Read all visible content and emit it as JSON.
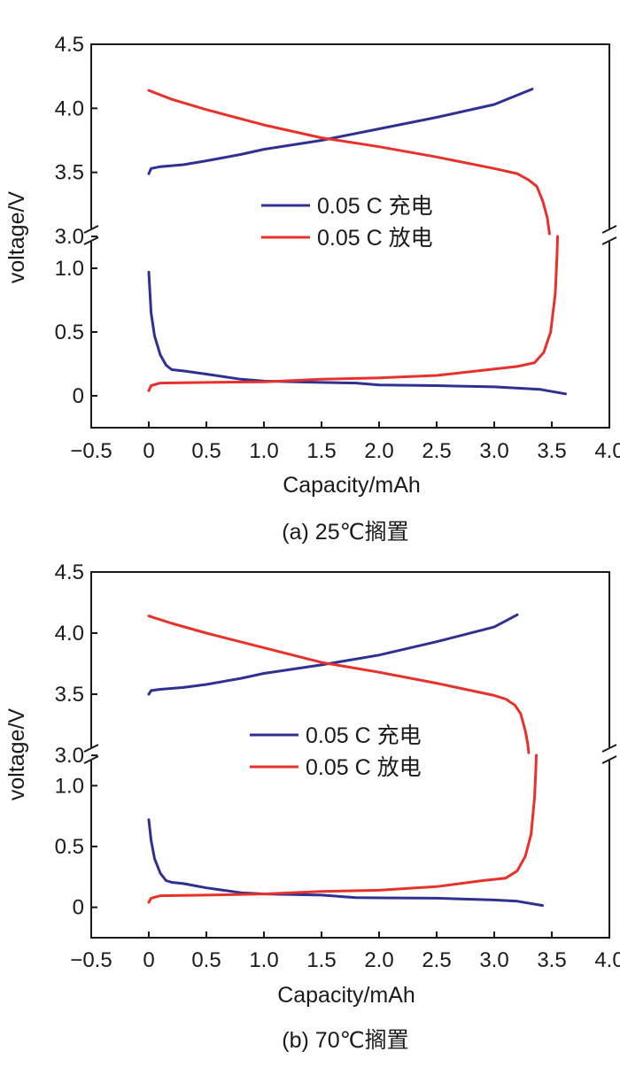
{
  "chart_data": [
    {
      "type": "line",
      "caption": "(a) 25℃搁置",
      "xlabel": "Capacity/mAh",
      "ylabel": "voltage/V",
      "xlim": [
        -0.5,
        4.0
      ],
      "x_ticks": [
        "−0.5",
        "0",
        "0.5",
        "1.0",
        "1.5",
        "2.0",
        "2.5",
        "3.0",
        "3.5",
        "4.0"
      ],
      "x_tick_values": [
        -0.5,
        0,
        0.5,
        1.0,
        1.5,
        2.0,
        2.5,
        3.0,
        3.5,
        4.0
      ],
      "y_broken_axis": true,
      "y_upper_range": [
        3.0,
        4.5
      ],
      "y_lower_range": [
        -0.25,
        1.25
      ],
      "y_ticks_upper": [
        "3.0",
        "3.5",
        "4.0",
        "4.5"
      ],
      "y_tick_values_upper": [
        3.0,
        3.5,
        4.0,
        4.5
      ],
      "y_ticks_lower": [
        "0",
        "0.5",
        "1.0"
      ],
      "y_tick_values_lower": [
        0,
        0.5,
        1.0
      ],
      "legend_position": "center",
      "grid": false,
      "series": [
        {
          "name": "0.05 C 充电",
          "color": "#2e3192",
          "lower": [
            [
              0.0,
              0.97
            ],
            [
              0.02,
              0.65
            ],
            [
              0.05,
              0.47
            ],
            [
              0.1,
              0.32
            ],
            [
              0.15,
              0.24
            ],
            [
              0.2,
              0.205
            ],
            [
              0.3,
              0.195
            ],
            [
              0.5,
              0.17
            ],
            [
              0.8,
              0.13
            ],
            [
              1.0,
              0.115
            ],
            [
              1.5,
              0.105
            ],
            [
              1.8,
              0.1
            ],
            [
              2.0,
              0.085
            ],
            [
              2.5,
              0.08
            ],
            [
              3.0,
              0.07
            ],
            [
              3.4,
              0.05
            ],
            [
              3.62,
              0.015
            ]
          ],
          "upper": [
            [
              0.0,
              3.49
            ],
            [
              0.02,
              3.53
            ],
            [
              0.1,
              3.545
            ],
            [
              0.3,
              3.56
            ],
            [
              0.5,
              3.59
            ],
            [
              0.8,
              3.64
            ],
            [
              1.0,
              3.68
            ],
            [
              1.5,
              3.75
            ],
            [
              2.0,
              3.84
            ],
            [
              2.5,
              3.93
            ],
            [
              3.0,
              4.03
            ],
            [
              3.33,
              4.15
            ]
          ]
        },
        {
          "name": "0.05 C 放电",
          "color": "#e8312a",
          "upper": [
            [
              0.0,
              4.14
            ],
            [
              0.2,
              4.07
            ],
            [
              0.5,
              3.99
            ],
            [
              1.0,
              3.87
            ],
            [
              1.5,
              3.77
            ],
            [
              2.0,
              3.7
            ],
            [
              2.5,
              3.62
            ],
            [
              3.0,
              3.53
            ],
            [
              3.2,
              3.49
            ],
            [
              3.3,
              3.44
            ],
            [
              3.37,
              3.39
            ],
            [
              3.42,
              3.28
            ],
            [
              3.46,
              3.15
            ],
            [
              3.48,
              3.02
            ]
          ],
          "lower": [
            [
              0.0,
              0.04
            ],
            [
              0.02,
              0.08
            ],
            [
              0.1,
              0.1
            ],
            [
              0.5,
              0.105
            ],
            [
              1.0,
              0.11
            ],
            [
              1.5,
              0.13
            ],
            [
              2.0,
              0.14
            ],
            [
              2.5,
              0.16
            ],
            [
              3.0,
              0.21
            ],
            [
              3.2,
              0.23
            ],
            [
              3.35,
              0.26
            ],
            [
              3.43,
              0.34
            ],
            [
              3.49,
              0.5
            ],
            [
              3.53,
              0.8
            ],
            [
              3.545,
              1.1
            ],
            [
              3.55,
              1.25
            ]
          ]
        }
      ]
    },
    {
      "type": "line",
      "caption": "(b) 70℃搁置",
      "xlabel": "Capacity/mAh",
      "ylabel": "voltage/V",
      "xlim": [
        -0.5,
        4.0
      ],
      "x_ticks": [
        "−0.5",
        "0",
        "0.5",
        "1.0",
        "1.5",
        "2.0",
        "2.5",
        "3.0",
        "3.5",
        "4.0"
      ],
      "x_tick_values": [
        -0.5,
        0,
        0.5,
        1.0,
        1.5,
        2.0,
        2.5,
        3.0,
        3.5,
        4.0
      ],
      "y_broken_axis": true,
      "y_upper_range": [
        3.0,
        4.5
      ],
      "y_lower_range": [
        -0.25,
        1.25
      ],
      "y_ticks_upper": [
        "3.0",
        "3.5",
        "4.0",
        "4.5"
      ],
      "y_tick_values_upper": [
        3.0,
        3.5,
        4.0,
        4.5
      ],
      "y_ticks_lower": [
        "0",
        "0.5",
        "1.0"
      ],
      "y_tick_values_lower": [
        0,
        0.5,
        1.0
      ],
      "legend_position": "center",
      "grid": false,
      "series": [
        {
          "name": "0.05 C 充电",
          "color": "#2e3192",
          "lower": [
            [
              0.0,
              0.72
            ],
            [
              0.02,
              0.55
            ],
            [
              0.05,
              0.4
            ],
            [
              0.1,
              0.28
            ],
            [
              0.15,
              0.22
            ],
            [
              0.2,
              0.205
            ],
            [
              0.3,
              0.195
            ],
            [
              0.5,
              0.16
            ],
            [
              0.8,
              0.12
            ],
            [
              1.0,
              0.11
            ],
            [
              1.5,
              0.1
            ],
            [
              1.8,
              0.08
            ],
            [
              2.0,
              0.078
            ],
            [
              2.5,
              0.075
            ],
            [
              3.0,
              0.06
            ],
            [
              3.2,
              0.05
            ],
            [
              3.42,
              0.015
            ]
          ],
          "upper": [
            [
              0.0,
              3.5
            ],
            [
              0.02,
              3.53
            ],
            [
              0.1,
              3.54
            ],
            [
              0.3,
              3.555
            ],
            [
              0.5,
              3.58
            ],
            [
              0.8,
              3.63
            ],
            [
              1.0,
              3.67
            ],
            [
              1.5,
              3.74
            ],
            [
              2.0,
              3.82
            ],
            [
              2.5,
              3.93
            ],
            [
              3.0,
              4.05
            ],
            [
              3.2,
              4.15
            ]
          ]
        },
        {
          "name": "0.05 C 放电",
          "color": "#e8312a",
          "upper": [
            [
              0.0,
              4.14
            ],
            [
              0.2,
              4.08
            ],
            [
              0.5,
              4.0
            ],
            [
              1.0,
              3.88
            ],
            [
              1.5,
              3.76
            ],
            [
              2.0,
              3.68
            ],
            [
              2.5,
              3.59
            ],
            [
              3.0,
              3.49
            ],
            [
              3.1,
              3.46
            ],
            [
              3.18,
              3.41
            ],
            [
              3.23,
              3.34
            ],
            [
              3.27,
              3.2
            ],
            [
              3.29,
              3.1
            ],
            [
              3.3,
              3.02
            ]
          ],
          "lower": [
            [
              0.0,
              0.04
            ],
            [
              0.02,
              0.075
            ],
            [
              0.1,
              0.095
            ],
            [
              0.5,
              0.1
            ],
            [
              1.0,
              0.11
            ],
            [
              1.5,
              0.13
            ],
            [
              2.0,
              0.14
            ],
            [
              2.5,
              0.17
            ],
            [
              2.9,
              0.22
            ],
            [
              3.1,
              0.24
            ],
            [
              3.2,
              0.3
            ],
            [
              3.27,
              0.42
            ],
            [
              3.32,
              0.6
            ],
            [
              3.35,
              0.9
            ],
            [
              3.36,
              1.1
            ],
            [
              3.365,
              1.25
            ]
          ]
        }
      ]
    }
  ]
}
